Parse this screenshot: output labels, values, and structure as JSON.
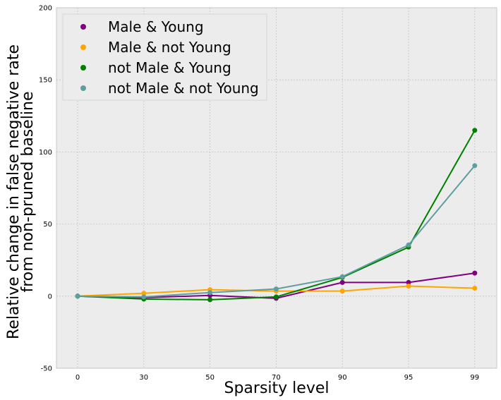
{
  "chart_data": {
    "type": "line",
    "title": "",
    "xlabel": "Sparsity level",
    "ylabel_lines": [
      "Relative change in false negative rate",
      "from non-pruned baseline"
    ],
    "categories": [
      "0",
      "30",
      "50",
      "70",
      "90",
      "95",
      "99"
    ],
    "ylim": [
      -50,
      200
    ],
    "yticks": [
      -50,
      0,
      50,
      100,
      150,
      200
    ],
    "grid": true,
    "legend_position": "top-left",
    "series": [
      {
        "name": "Male & Young",
        "color": "#800080",
        "values": [
          0,
          -1,
          0.5,
          -1.5,
          9.5,
          9.5,
          16
        ]
      },
      {
        "name": "Male & not Young",
        "color": "#ffa500",
        "values": [
          0,
          2,
          4.5,
          3.5,
          3.5,
          7,
          5.5
        ]
      },
      {
        "name": "not Male & Young",
        "color": "#008000",
        "values": [
          0,
          -2,
          -2.5,
          -0.5,
          13,
          34,
          115
        ]
      },
      {
        "name": "not Male & not Young",
        "color": "#5f9ea0",
        "values": [
          0,
          -0.5,
          2.5,
          5,
          13.5,
          35.5,
          90.5
        ]
      }
    ]
  }
}
